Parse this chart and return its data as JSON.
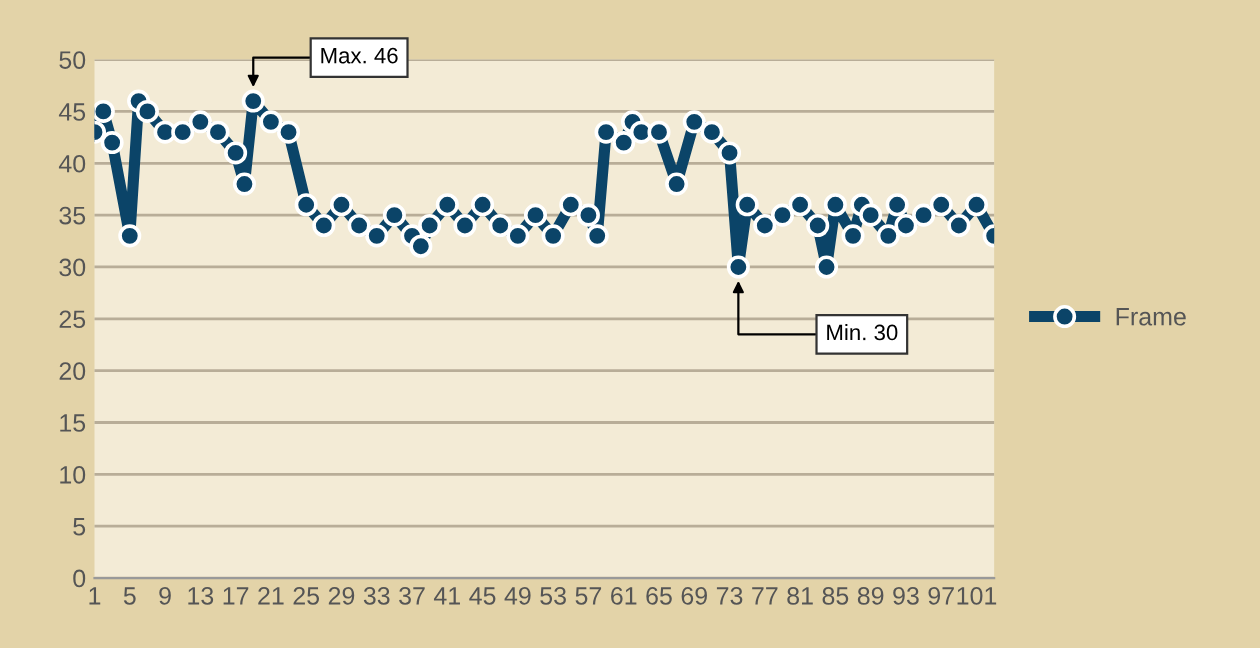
{
  "chart_data": {
    "type": "line",
    "x": [
      1,
      2,
      3,
      5,
      6,
      7,
      9,
      11,
      13,
      15,
      17,
      18,
      19,
      21,
      23,
      25,
      27,
      29,
      31,
      33,
      35,
      37,
      38,
      39,
      41,
      43,
      45,
      47,
      49,
      51,
      53,
      55,
      57,
      58,
      59,
      61,
      62,
      63,
      65,
      67,
      69,
      71,
      73,
      74,
      75,
      77,
      79,
      81,
      83,
      84,
      85,
      87,
      88,
      89,
      91,
      92,
      93,
      95,
      97,
      99,
      101,
      103
    ],
    "series": [
      {
        "name": "Frame",
        "color": "#0b4468",
        "values": [
          43,
          45,
          42,
          33,
          46,
          45,
          43,
          43,
          44,
          43,
          41,
          38,
          46,
          44,
          43,
          36,
          34,
          36,
          34,
          33,
          35,
          33,
          32,
          34,
          36,
          34,
          36,
          34,
          33,
          35,
          33,
          36,
          35,
          33,
          43,
          42,
          44,
          43,
          43,
          38,
          44,
          43,
          41,
          30,
          36,
          34,
          35,
          36,
          34,
          30,
          36,
          33,
          36,
          35,
          33,
          36,
          34,
          35,
          36,
          34,
          36,
          33
        ]
      }
    ],
    "xlim": [
      1,
      103
    ],
    "xticks": [
      1,
      5,
      9,
      13,
      17,
      21,
      25,
      29,
      33,
      37,
      41,
      45,
      49,
      53,
      57,
      61,
      65,
      69,
      73,
      77,
      81,
      85,
      89,
      93,
      97,
      101
    ],
    "ylim": [
      0,
      50
    ],
    "yticks": [
      0,
      5,
      10,
      15,
      20,
      25,
      30,
      35,
      40,
      45,
      50
    ],
    "grid": "y",
    "legend": "right",
    "marker": "circle",
    "line_style": "solid",
    "annotations": [
      {
        "text": "Max. 46",
        "x": 19,
        "y": 46
      },
      {
        "text": "Min. 30",
        "x": 74,
        "y": 30
      }
    ]
  }
}
